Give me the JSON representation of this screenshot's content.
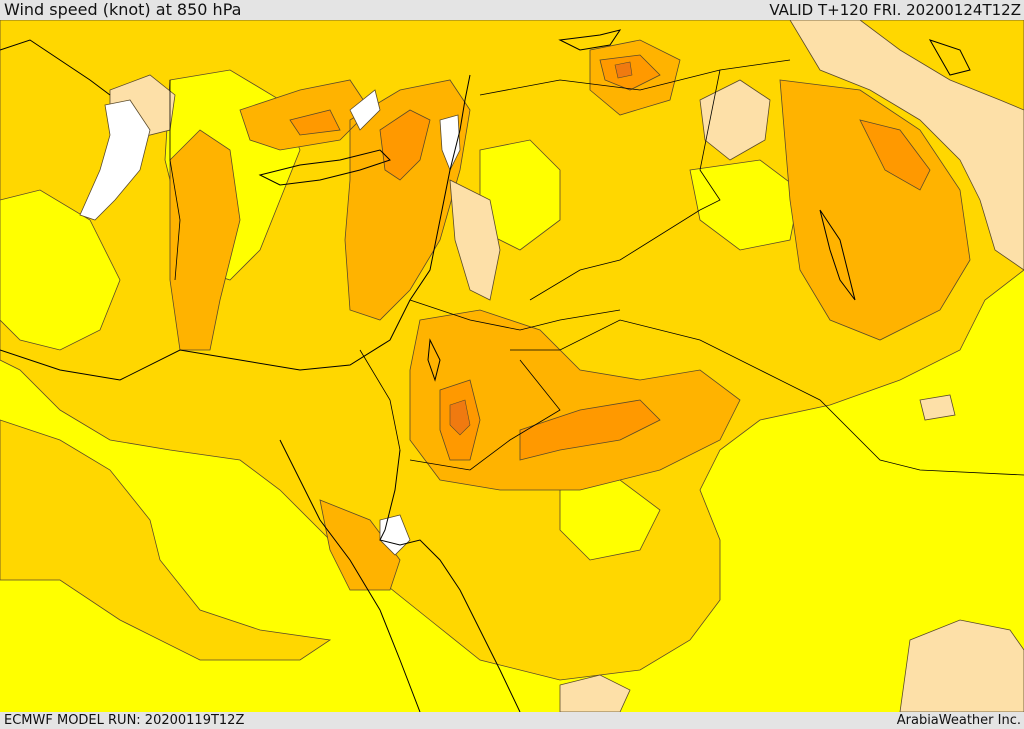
{
  "header": {
    "title": "Wind speed (knot) at 850 hPa",
    "valid_label": "VALID T+120 FRI. 20200124T12Z"
  },
  "footer": {
    "model_run": "ECMWF MODEL RUN: 20200119T12Z",
    "credit": "ArabiaWeather Inc."
  },
  "map": {
    "colors": {
      "calm": "#ffffff",
      "low": "#fde0a8",
      "base": "#ffff00",
      "light": "#ffd700",
      "medium": "#ffb300",
      "strong": "#ff9900",
      "stronger": "#f07a10",
      "contour_line": "#5a4a2a",
      "coast_line": "#000000"
    }
  }
}
